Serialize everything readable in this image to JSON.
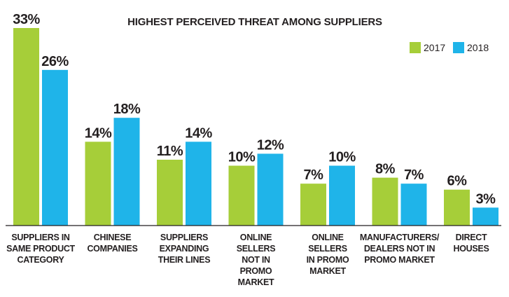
{
  "chart_data": {
    "type": "bar",
    "title": "HIGHEST PERCEIVED THREAT AMONG SUPPLIERS",
    "categories": [
      "SUPPLIERS IN SAME PRODUCT CATEGORY",
      "CHINESE COMPANIES",
      "SUPPLIERS EXPANDING THEIR LINES",
      "ONLINE SELLERS NOT IN PROMO MARKET",
      "ONLINE SELLERS IN PROMO MARKET",
      "MANUFACTURERS/ DEALERS NOT IN PROMO MARKET",
      "DIRECT HOUSES"
    ],
    "category_lines": [
      [
        "SUPPLIERS IN",
        "SAME PRODUCT",
        "CATEGORY"
      ],
      [
        "CHINESE",
        "COMPANIES"
      ],
      [
        "SUPPLIERS",
        "EXPANDING",
        "THEIR LINES"
      ],
      [
        "ONLINE",
        "SELLERS",
        "NOT IN",
        "PROMO",
        "MARKET"
      ],
      [
        "ONLINE",
        "SELLERS",
        "IN PROMO",
        "MARKET"
      ],
      [
        "MANUFACTURERS/",
        "DEALERS NOT IN",
        "PROMO MARKET"
      ],
      [
        "DIRECT",
        "HOUSES"
      ]
    ],
    "series": [
      {
        "name": "2017",
        "color": "#a6ce39",
        "values": [
          33,
          14,
          11,
          10,
          7,
          8,
          6
        ],
        "labels": [
          "33%",
          "14%",
          "11%",
          "10%",
          "7%",
          "8%",
          "6%"
        ]
      },
      {
        "name": "2018",
        "color": "#1fb4e9",
        "values": [
          26,
          18,
          14,
          12,
          10,
          7,
          3
        ],
        "labels": [
          "26%",
          "18%",
          "14%",
          "12%",
          "10%",
          "7%",
          "3%"
        ]
      }
    ],
    "ylim": [
      0,
      33
    ],
    "grid": false,
    "legend_position": "top-right",
    "xlabel": "",
    "ylabel": ""
  }
}
